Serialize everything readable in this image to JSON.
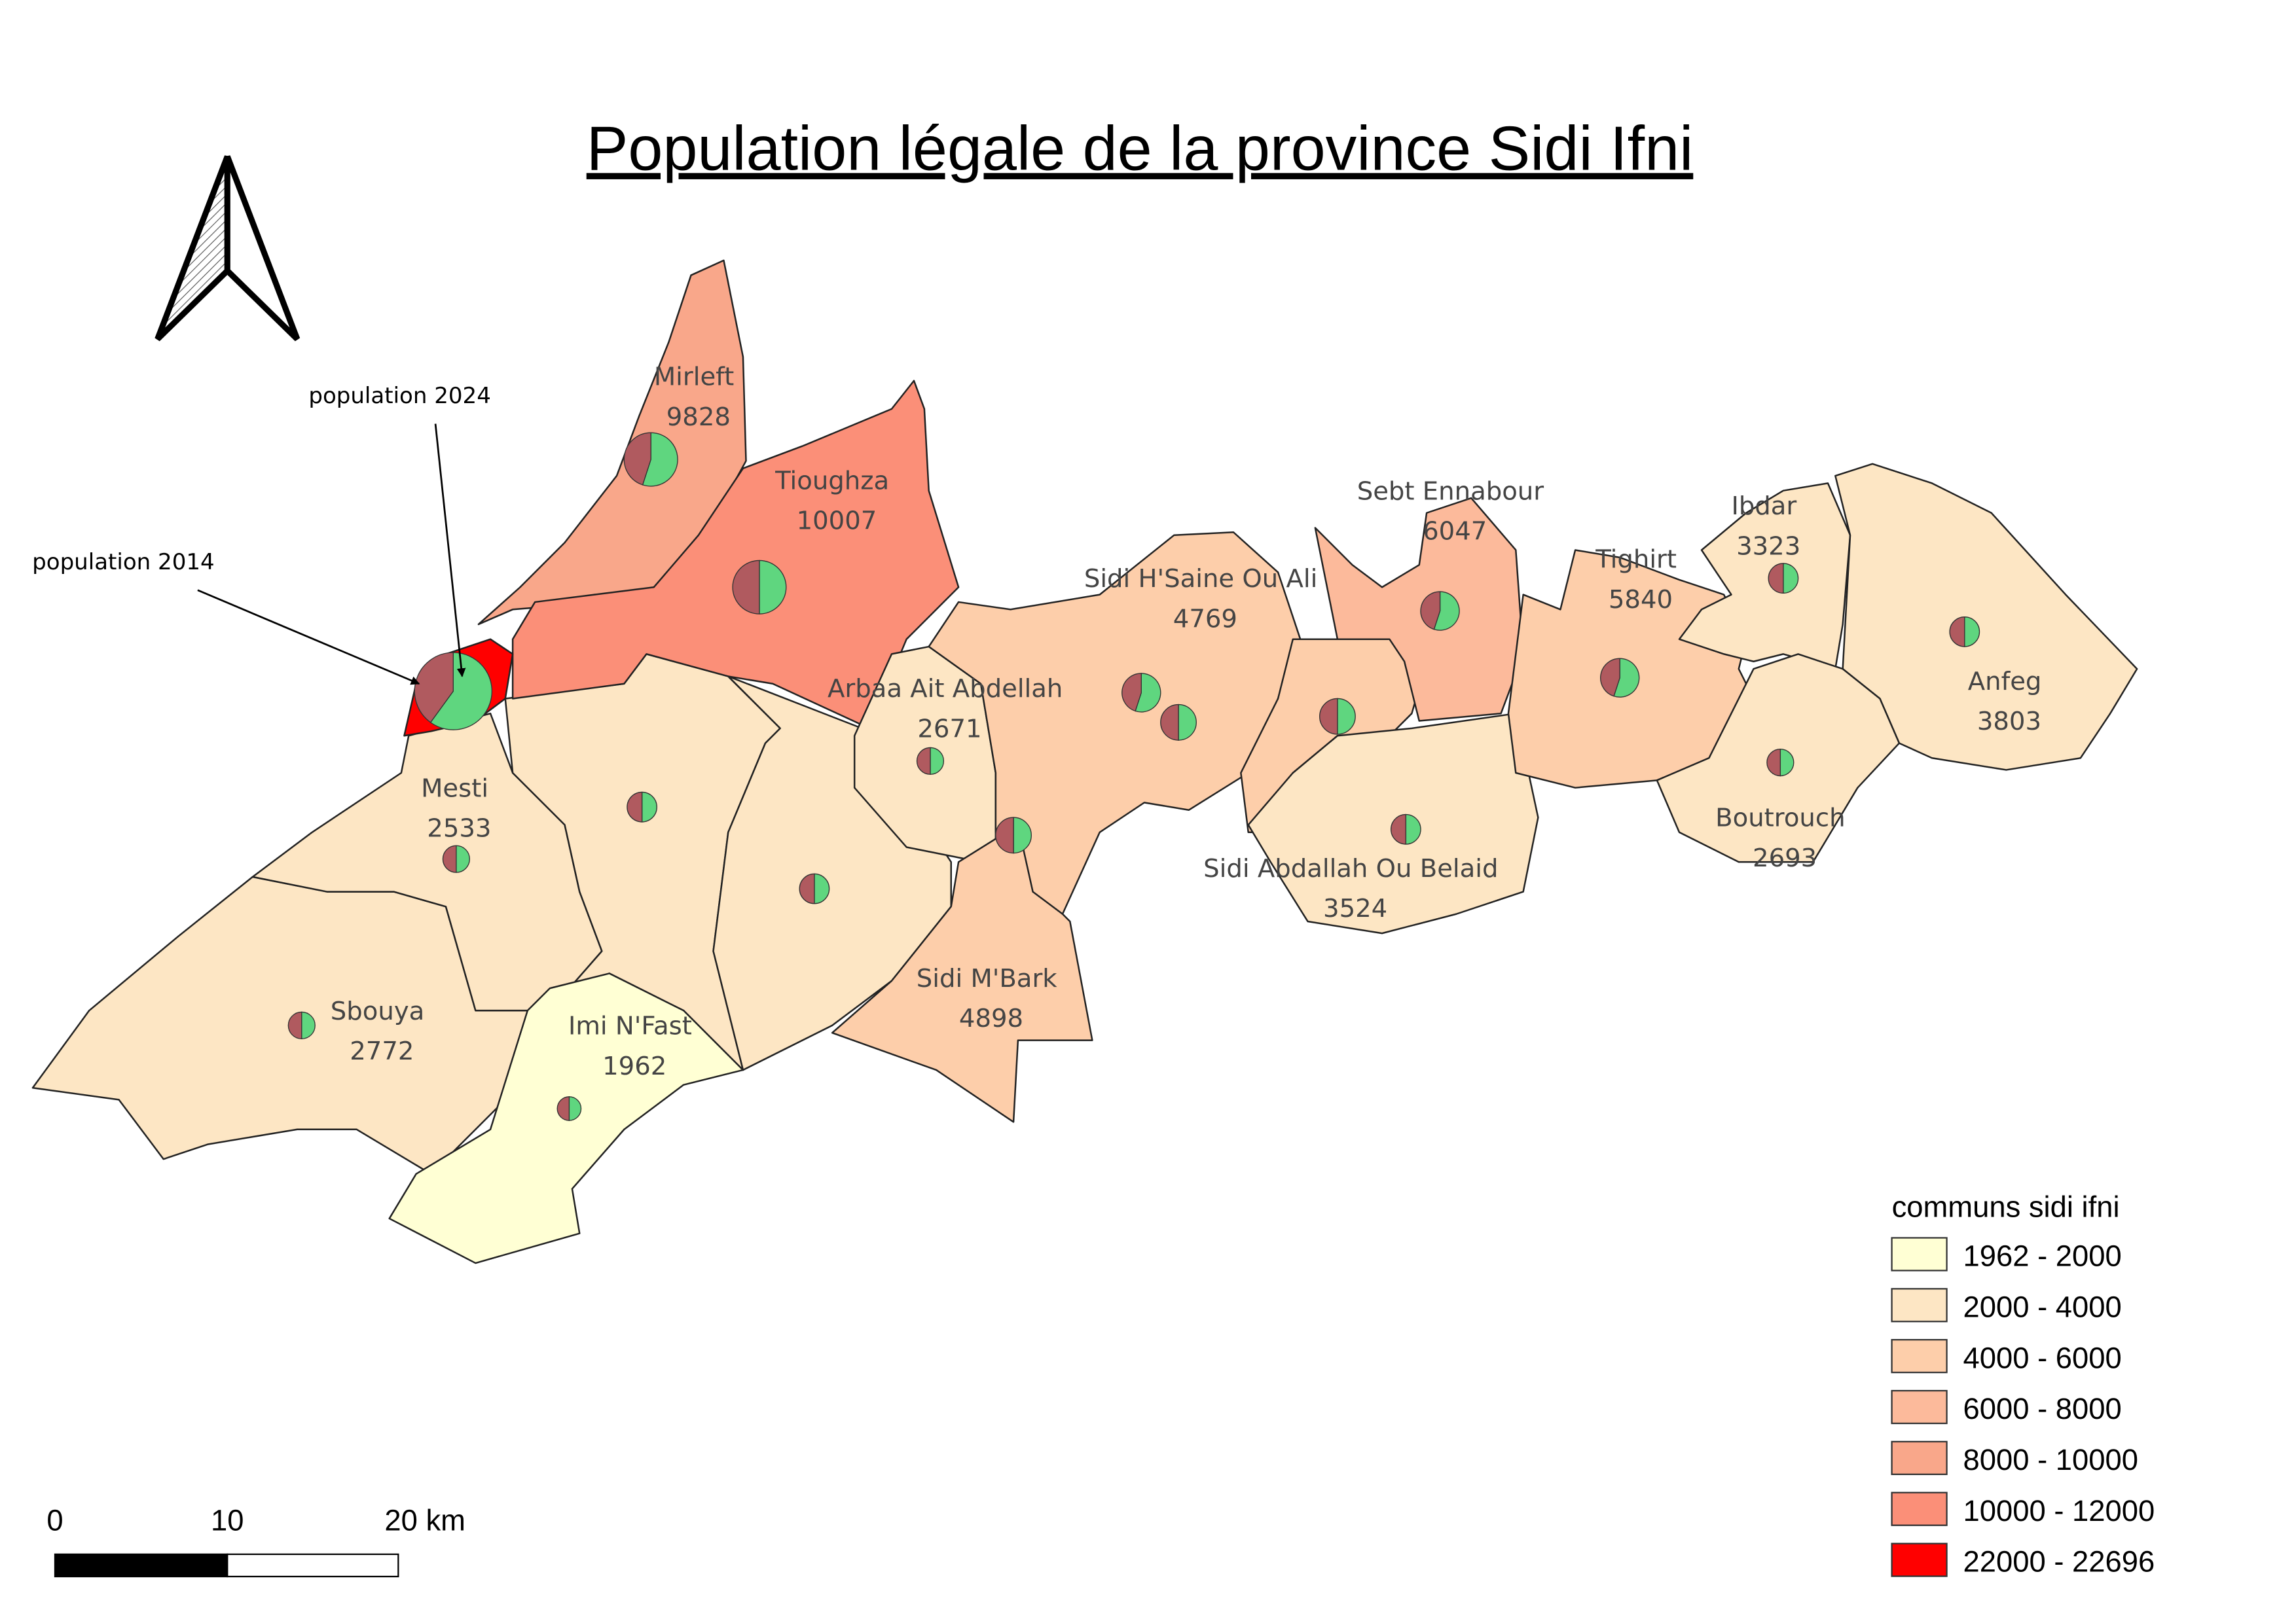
{
  "title": "Population légale de la province Sidi Ifni",
  "annotations": [
    "population 2024",
    "population 2014"
  ],
  "communes": [
    {
      "name": "Mirleft",
      "population": 9828
    },
    {
      "name": "Tioughza",
      "population": 10007
    },
    {
      "name": "Sebt Ennabour",
      "population": 6047
    },
    {
      "name": "Ibdar",
      "population": 3323
    },
    {
      "name": "Sidi H'Saine Ou Ali",
      "population": 4769
    },
    {
      "name": "Tighirt",
      "population": 5840
    },
    {
      "name": "Arbaa Ait Abdellah",
      "population": 2671
    },
    {
      "name": "Anfeg",
      "population": 3803
    },
    {
      "name": "Mesti",
      "population": 2533
    },
    {
      "name": "Boutrouch",
      "population": 2693
    },
    {
      "name": "Sidi Abdallah Ou Belaid",
      "population": 3524
    },
    {
      "name": "Sidi M'Bark",
      "population": 4898
    },
    {
      "name": "Sbouya",
      "population": 2772
    },
    {
      "name": "Imi N'Fast",
      "population": 1962
    }
  ],
  "legend": {
    "title": "communs sidi ifni",
    "items": [
      {
        "label": "1962 - 2000",
        "color": "#ffffd4"
      },
      {
        "label": "2000 - 4000",
        "color": "#fde6c4"
      },
      {
        "label": "4000 - 6000",
        "color": "#fdceaa"
      },
      {
        "label": "6000 - 8000",
        "color": "#fcba9b"
      },
      {
        "label": "8000 - 10000",
        "color": "#f9a78a"
      },
      {
        "label": "10000 - 12000",
        "color": "#fb8f78"
      },
      {
        "label": "22000 - 22696",
        "color": "#ff0000"
      }
    ]
  },
  "scale_bar": {
    "labels": [
      "0",
      "10",
      "20 km"
    ]
  }
}
